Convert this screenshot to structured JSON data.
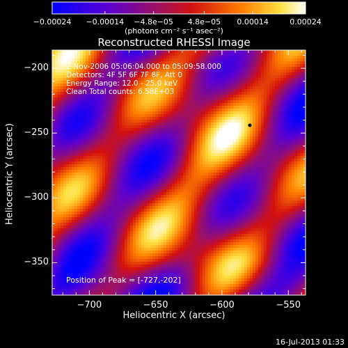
{
  "chart_data": {
    "type": "heatmap",
    "title": "Reconstructed RHESSI Image",
    "xlabel": "Heliocentric X (arcsec)",
    "ylabel": "Heliocentric Y (arcsec)",
    "xlim": [
      -728,
      -537
    ],
    "ylim": [
      -375,
      -186
    ],
    "x_ticks": [
      {
        "value": -700,
        "label": "−700"
      },
      {
        "value": -650,
        "label": "−650"
      },
      {
        "value": -600,
        "label": "−600"
      },
      {
        "value": -550,
        "label": "−550"
      }
    ],
    "y_ticks": [
      {
        "value": -200,
        "label": "−200"
      },
      {
        "value": -250,
        "label": "−250"
      },
      {
        "value": -300,
        "label": "−300"
      },
      {
        "value": -350,
        "label": "−350"
      }
    ],
    "colorbar": {
      "range": [
        -0.00024,
        0.00024
      ],
      "ticks": [
        {
          "value": -0.00024,
          "label": "−0.00024"
        },
        {
          "value": -0.00014,
          "label": "−0.00014"
        },
        {
          "value": -4.8e-05,
          "label": "−4.8e−05"
        },
        {
          "value": 4.8e-05,
          "label": "4.8e−05"
        },
        {
          "value": 0.00014,
          "label": "0.00014"
        },
        {
          "value": 0.00024,
          "label": "0.00024"
        }
      ],
      "unit_label": "(photons cm⁻² s⁻¹ asec⁻²)",
      "stops": [
        "#0000ff",
        "#7b00c0",
        "#c01010",
        "#ff8000",
        "#ffff40",
        "#ffffff"
      ]
    },
    "annotations": [
      "2-Nov-2006 05:06:04.000 to 05:09:58.000",
      "Detectors: 4F 5F 6F 7F 8F, Att 0",
      "Energy Range: 12.0 - 25.0 keV",
      "Clean    Total counts: 6.58E+03"
    ],
    "peak_label": "Position of Peak = [-727,-202]",
    "marker": {
      "x": -579,
      "y": -244
    }
  },
  "timestamp": "16-Jul-2013 01:33"
}
